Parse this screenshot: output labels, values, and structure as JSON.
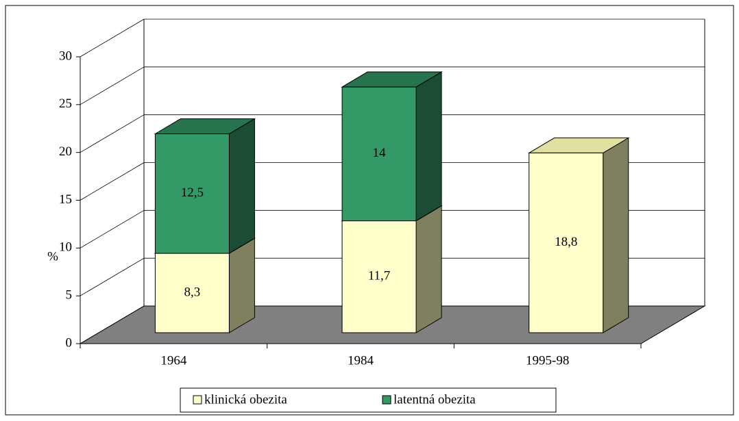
{
  "chart_data": {
    "type": "bar3d_stacked",
    "categories": [
      "1964",
      "1984",
      "1995-98"
    ],
    "series": [
      {
        "name": "klinická obezita",
        "color": "#ffffcc",
        "values": [
          8.3,
          11.7,
          18.8
        ],
        "value_labels": [
          "8,3",
          "11,7",
          "18,8"
        ]
      },
      {
        "name": "latentná obezita",
        "color": "#339966",
        "values": [
          12.5,
          14,
          null
        ],
        "value_labels": [
          "12,5",
          "14",
          null
        ]
      }
    ],
    "y_label": "%",
    "ylim": [
      0,
      30
    ],
    "yticks": [
      0,
      5,
      10,
      15,
      20,
      25,
      30
    ],
    "grid": true,
    "legend": "bottom"
  }
}
